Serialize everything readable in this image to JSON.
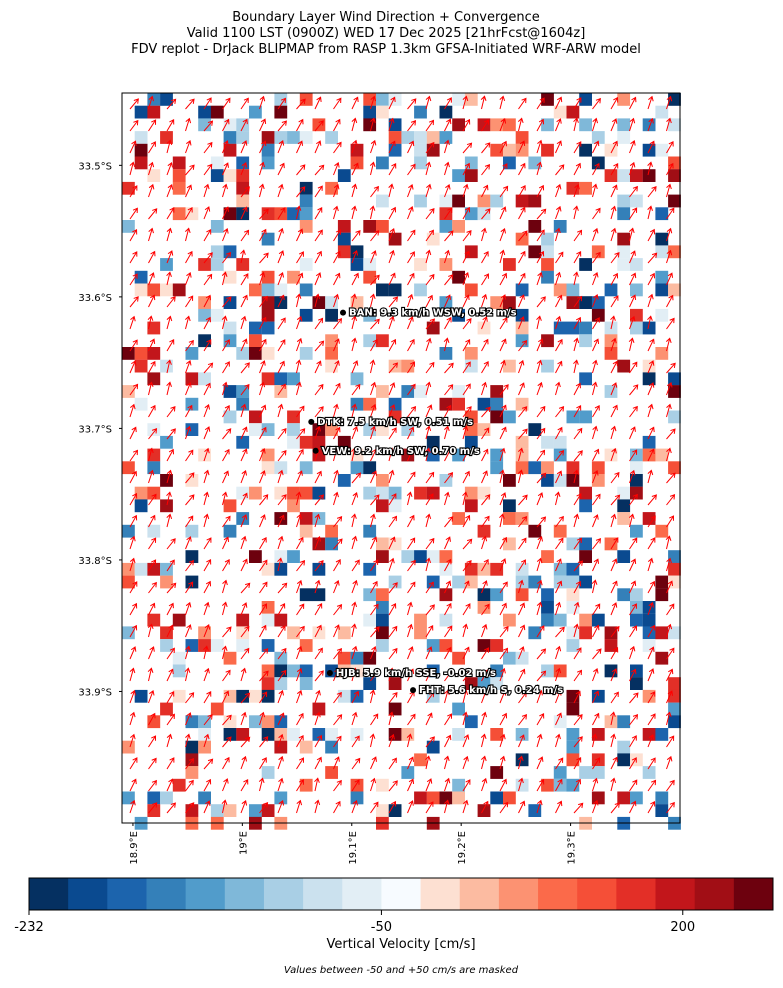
{
  "chart_data": {
    "type": "map",
    "title": [
      "Boundary Layer Wind Direction + Convergence",
      "Valid 1100 LST (0900Z) WED 17 Dec 2025 [21hrFcst@1604z]",
      "FDV replot - DrJack BLIPMAP from RASP 1.3km GFSA-Initiated WRF-ARW model"
    ],
    "xlim": [
      18.89,
      19.4
    ],
    "ylim": [
      -34.0,
      -33.445
    ],
    "xticks": [
      {
        "value": 18.9,
        "label": "18.9°E"
      },
      {
        "value": 19.0,
        "label": "19°E"
      },
      {
        "value": 19.1,
        "label": "19.1°E"
      },
      {
        "value": 19.2,
        "label": "19.2°E"
      },
      {
        "value": 19.3,
        "label": "19.3°E"
      }
    ],
    "yticks": [
      {
        "value": -33.5,
        "label": "33.5°S"
      },
      {
        "value": -33.6,
        "label": "33.6°S"
      },
      {
        "value": -33.7,
        "label": "33.7°S"
      },
      {
        "value": -33.8,
        "label": "33.8°S"
      },
      {
        "value": -33.9,
        "label": "33.9°S"
      }
    ],
    "stations": [
      {
        "label": "BAN: 9.3 km/h WSW, 0.52 m/s",
        "lon": 19.092,
        "lat": -33.612
      },
      {
        "label": "DTK: 7.5 km/h SW, 0.51 m/s",
        "lon": 19.063,
        "lat": -33.695
      },
      {
        "label": "VEW: 9.2 km/h SW, 0.70 m/s",
        "lon": 19.067,
        "lat": -33.717
      },
      {
        "label": "HJB: 5.9 km/h SSE, -0.02 m/s",
        "lon": 19.08,
        "lat": -33.886
      },
      {
        "label": "FHT: 5.6 km/h S, 0.24 m/s",
        "lon": 19.156,
        "lat": -33.899
      }
    ],
    "colorbar": {
      "label": "Vertical Velocity [cm/s]",
      "boundaries": [
        -232,
        -212,
        -192,
        -171,
        -151,
        -131,
        -111,
        -91,
        -70,
        -50,
        50,
        72,
        95,
        117,
        140,
        162,
        184,
        207,
        229,
        252
      ],
      "colors": [
        "#053061",
        "#0a4a90",
        "#1c64ad",
        "#3480b9",
        "#519ccb",
        "#7fb8d9",
        "#a9cfe5",
        "#cbe1ee",
        "#e2eef5",
        "#f7fbff",
        "#fde0d2",
        "#fcbba1",
        "#fc9272",
        "#fb6a4a",
        "#f54f37",
        "#e32f27",
        "#c2161b",
        "#a10e15",
        "#6d010e"
      ],
      "ticks": [
        -232,
        -50,
        200
      ]
    },
    "note": "Values between -50 and +50 cm/s are masked"
  }
}
